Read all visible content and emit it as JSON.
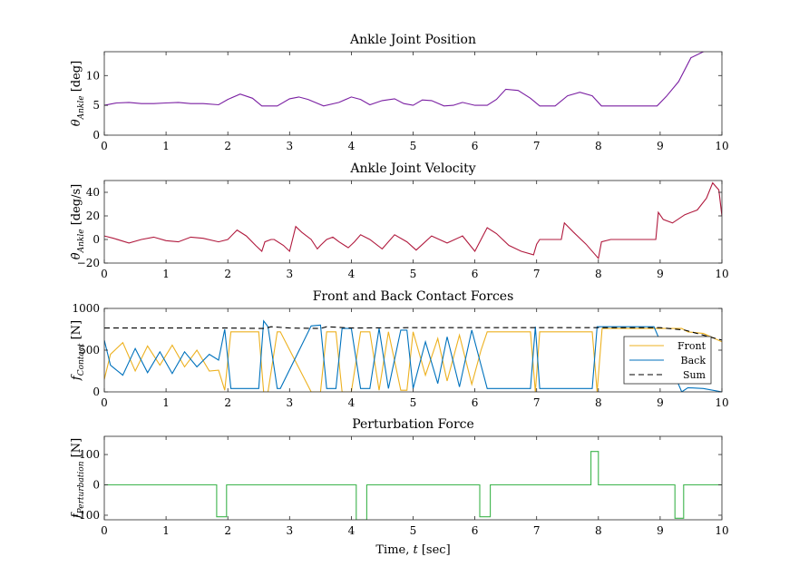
{
  "chart_data": [
    {
      "type": "line",
      "title": "Ankle Joint Position",
      "ylabel": "θ_Ankle [deg]",
      "ylabel_var": "θ",
      "ylabel_sub": "Ankle",
      "ylabel_unit": "[deg]",
      "xlim": [
        0,
        10
      ],
      "ylim": [
        0,
        14
      ],
      "xticks": [
        0,
        1,
        2,
        3,
        4,
        5,
        6,
        7,
        8,
        9,
        10
      ],
      "yticks": [
        0,
        5,
        10
      ],
      "series": [
        {
          "color": "#7a1fa2",
          "x": [
            0,
            0.2,
            0.4,
            0.6,
            0.8,
            1.0,
            1.2,
            1.4,
            1.6,
            1.85,
            2.0,
            2.2,
            2.4,
            2.55,
            2.8,
            3.0,
            3.15,
            3.3,
            3.55,
            3.8,
            4.0,
            4.15,
            4.3,
            4.5,
            4.7,
            4.85,
            5.0,
            5.15,
            5.3,
            5.5,
            5.65,
            5.8,
            6.0,
            6.2,
            6.35,
            6.5,
            6.7,
            6.9,
            7.05,
            7.3,
            7.5,
            7.7,
            7.9,
            8.05,
            8.5,
            8.95,
            9.1,
            9.3,
            9.5,
            9.8,
            10
          ],
          "y": [
            5,
            5.4,
            5.5,
            5.3,
            5.3,
            5.4,
            5.5,
            5.3,
            5.3,
            5.1,
            6.0,
            6.9,
            6.2,
            4.9,
            4.9,
            6.1,
            6.4,
            6.0,
            4.9,
            5.5,
            6.4,
            6.0,
            5.1,
            5.8,
            6.1,
            5.3,
            5.0,
            5.9,
            5.8,
            4.9,
            5.0,
            5.5,
            5.0,
            5.0,
            6.0,
            7.7,
            7.5,
            6.2,
            4.9,
            4.9,
            6.6,
            7.2,
            6.6,
            4.9,
            4.9,
            4.9,
            6.5,
            9.0,
            13.0,
            14.5,
            15
          ]
        }
      ]
    },
    {
      "type": "line",
      "title": "Ankle Joint Velocity",
      "ylabel": "θ̇_Ankle [deg/s]",
      "ylabel_var": "θ̇",
      "ylabel_sub": "Ankle",
      "ylabel_unit": "[deg/s]",
      "xlim": [
        0,
        10
      ],
      "ylim": [
        -20,
        50
      ],
      "xticks": [
        0,
        1,
        2,
        3,
        4,
        5,
        6,
        7,
        8,
        9,
        10
      ],
      "yticks": [
        -20,
        0,
        20,
        40
      ],
      "series": [
        {
          "color": "#b0193d",
          "x": [
            0,
            0.15,
            0.4,
            0.6,
            0.8,
            1.0,
            1.2,
            1.4,
            1.6,
            1.85,
            2.0,
            2.15,
            2.3,
            2.45,
            2.55,
            2.6,
            2.7,
            2.75,
            2.9,
            3.0,
            3.1,
            3.2,
            3.35,
            3.45,
            3.5,
            3.6,
            3.7,
            3.8,
            3.95,
            4.05,
            4.15,
            4.3,
            4.5,
            4.7,
            4.9,
            5.05,
            5.3,
            5.55,
            5.8,
            6.0,
            6.2,
            6.35,
            6.55,
            6.75,
            6.95,
            7.0,
            7.05,
            7.2,
            7.3,
            7.4,
            7.45,
            7.6,
            7.8,
            8.0,
            8.05,
            8.2,
            8.4,
            8.6,
            8.8,
            8.93,
            8.97,
            9.05,
            9.2,
            9.4,
            9.6,
            9.75,
            9.85,
            9.95,
            10
          ],
          "y": [
            3,
            1,
            -3,
            0,
            2,
            -1,
            -2,
            2,
            1,
            -2,
            0,
            8,
            3,
            -5,
            -10,
            -2,
            0,
            0,
            -5,
            -10,
            11,
            6,
            0,
            -8,
            -5,
            0,
            2,
            -2,
            -7,
            -2,
            4,
            0,
            -8,
            4,
            -2,
            -9,
            3,
            -3,
            3,
            -10,
            10,
            5,
            -5,
            -10,
            -13,
            -4,
            0,
            0,
            0,
            0,
            14,
            6,
            -4,
            -16,
            -2,
            0,
            0,
            0,
            0,
            0,
            23,
            17,
            14,
            21,
            25,
            35,
            48,
            42,
            20
          ]
        }
      ]
    },
    {
      "type": "line",
      "title": "Front and Back Contact Forces",
      "ylabel": "f_Contact [N]",
      "ylabel_var": "f",
      "ylabel_sub": "Contact",
      "ylabel_unit": "[N]",
      "xlim": [
        0,
        10
      ],
      "ylim": [
        0,
        1000
      ],
      "xticks": [
        0,
        1,
        2,
        3,
        4,
        5,
        6,
        7,
        8,
        9,
        10
      ],
      "yticks": [
        0,
        500,
        1000
      ],
      "legend": [
        "Front",
        "Back",
        "Sum"
      ],
      "legend_position": "right",
      "series": [
        {
          "name": "Front",
          "color": "#edb120",
          "x": [
            0,
            0.1,
            0.3,
            0.5,
            0.7,
            0.9,
            1.1,
            1.3,
            1.5,
            1.7,
            1.85,
            1.95,
            2.05,
            2.5,
            2.58,
            2.65,
            2.8,
            2.85,
            3.35,
            3.5,
            3.6,
            3.75,
            3.85,
            4.0,
            4.15,
            4.3,
            4.45,
            4.6,
            4.8,
            4.9,
            5.0,
            5.2,
            5.4,
            5.55,
            5.75,
            5.95,
            6.1,
            6.2,
            6.9,
            6.98,
            7.05,
            7.9,
            7.98,
            8.06,
            9.35,
            9.45,
            9.7,
            10
          ],
          "y": [
            150,
            450,
            590,
            250,
            550,
            320,
            560,
            300,
            500,
            250,
            260,
            20,
            720,
            720,
            0,
            0,
            720,
            720,
            0,
            0,
            720,
            720,
            0,
            0,
            720,
            720,
            20,
            720,
            20,
            20,
            720,
            200,
            640,
            130,
            680,
            90,
            500,
            720,
            720,
            0,
            720,
            720,
            0,
            760,
            760,
            720,
            700,
            600
          ]
        },
        {
          "name": "Back",
          "color": "#0072bd",
          "x": [
            0,
            0.1,
            0.3,
            0.5,
            0.7,
            0.9,
            1.1,
            1.3,
            1.5,
            1.7,
            1.85,
            1.95,
            2.05,
            2.5,
            2.58,
            2.65,
            2.8,
            2.85,
            3.35,
            3.5,
            3.6,
            3.75,
            3.85,
            4.0,
            4.15,
            4.3,
            4.45,
            4.6,
            4.8,
            4.9,
            5.0,
            5.2,
            5.4,
            5.55,
            5.75,
            5.95,
            6.1,
            6.2,
            6.9,
            6.98,
            7.05,
            7.9,
            7.98,
            8.06,
            8.9,
            9.35,
            9.45,
            9.7,
            10
          ],
          "y": [
            620,
            320,
            200,
            520,
            230,
            480,
            220,
            480,
            300,
            450,
            380,
            750,
            40,
            40,
            850,
            780,
            40,
            40,
            790,
            800,
            40,
            40,
            760,
            760,
            40,
            40,
            760,
            40,
            740,
            740,
            40,
            600,
            100,
            660,
            60,
            740,
            320,
            40,
            40,
            780,
            40,
            40,
            780,
            780,
            780,
            0,
            50,
            40,
            0
          ]
        },
        {
          "name": "Sum",
          "color": "#000000",
          "dash": true,
          "x": [
            0,
            1,
            2,
            2.6,
            2.7,
            3.0,
            3.5,
            3.6,
            4,
            5,
            6,
            7,
            8,
            9,
            9.4,
            10
          ],
          "y": [
            765,
            765,
            765,
            760,
            780,
            765,
            760,
            780,
            765,
            770,
            770,
            770,
            770,
            770,
            740,
            620
          ]
        }
      ]
    },
    {
      "type": "line",
      "title": "Perturbation Force",
      "ylabel": "f_Perturbation [N]",
      "ylabel_var": "f",
      "ylabel_sub": "Perturbation",
      "ylabel_unit": "[N]",
      "xlim": [
        0,
        10
      ],
      "ylim": [
        -115,
        160
      ],
      "xticks": [
        0,
        1,
        2,
        3,
        4,
        5,
        6,
        7,
        8,
        9,
        10
      ],
      "yticks": [
        -100,
        0,
        100
      ],
      "xlabel": "Time, t [sec]",
      "xlabel_pre": "Time, ",
      "xlabel_var": "t",
      "xlabel_unit": " [sec]",
      "series": [
        {
          "color": "#3cb44b",
          "x": [
            0,
            1.82,
            1.82,
            1.98,
            1.98,
            4.08,
            4.08,
            4.25,
            4.25,
            6.08,
            6.08,
            6.25,
            6.25,
            7.88,
            7.88,
            8.0,
            8.0,
            9.24,
            9.24,
            9.38,
            9.38,
            10
          ],
          "y": [
            0,
            0,
            -105,
            -105,
            0,
            0,
            -115,
            -115,
            0,
            0,
            -105,
            -105,
            0,
            0,
            110,
            110,
            0,
            0,
            -110,
            -110,
            0,
            0
          ]
        }
      ]
    }
  ]
}
